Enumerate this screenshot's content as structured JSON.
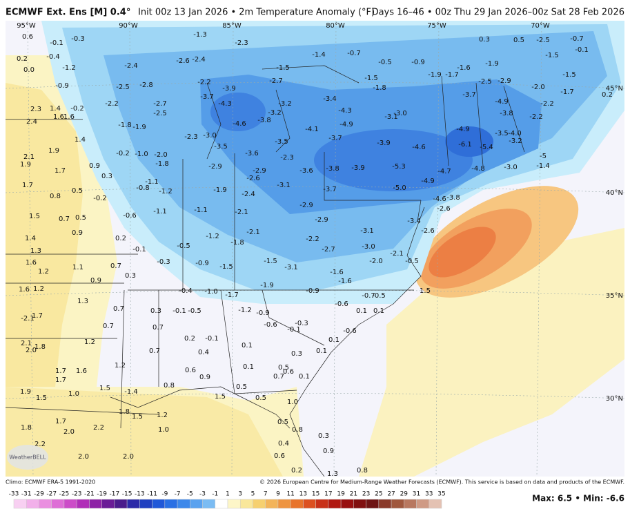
{
  "header": {
    "model": "ECMWF Ext. Ens [M] 0.4°",
    "description": "Init 00z 13 Jan 2026 • 2m Temperature Anomaly (°F)",
    "valid": "Days 16–46 • 00z Thu 29 Jan 2026–00z Sat 28 Feb 2026"
  },
  "map": {
    "lon_labels": [
      "95°W",
      "90°W",
      "85°W",
      "80°W",
      "75°W",
      "70°W"
    ],
    "lat_labels": [
      "45°N",
      "40°N",
      "35°N",
      "30°N"
    ],
    "logo": "WeatherBELL",
    "station_values": [
      "0.6",
      "-0.1",
      "-0.3",
      "-1.3",
      "-2.3",
      "-1.4",
      "-0.7",
      "-0.5",
      "-0.9",
      "0.3",
      "0.5",
      "-2.5",
      "-0.7",
      "-0.1",
      "0.2",
      "-0.4",
      "-1.2",
      "-2.4",
      "-2.6",
      "-2.4",
      "-1.5",
      "-1.5",
      "-1.9",
      "-1.7",
      "-1.6",
      "-1.9",
      "-1.5",
      "-1.5",
      "0.0",
      "-0.9",
      "-2.5",
      "-2.8",
      "-2.2",
      "-2.7",
      "-1.8",
      "-2.5",
      "-2.9",
      "-2.0",
      "-1.7",
      "0.2",
      "2.3",
      "1.4",
      "-0.2",
      "-2.2",
      "-2.7",
      "-3.7",
      "-3.9",
      "-4.3",
      "-3.2",
      "-3.4",
      "-4.3",
      "-3.7",
      "-4.9",
      "-2.2",
      "1.6",
      "1.6",
      "2.4",
      "-1.8",
      "-1.9",
      "-2.5",
      "-3.2",
      "-3.8",
      "-4.6",
      "-4.1",
      "-4.9",
      "-3.1",
      "-3.0",
      "-4.9",
      "-3.8",
      "-3.5",
      "-4.0",
      "-2.2",
      "1.4",
      "1.9",
      "-0.2",
      "-1.0",
      "-2.3",
      "-3.0",
      "-3.5",
      "-3.6",
      "-3.5",
      "-2.3",
      "-3.7",
      "-3.9",
      "-4.6",
      "-6.1",
      "-5.4",
      "-3.2",
      "-5",
      "2.1",
      "1.9",
      "1.7",
      "0.9",
      "-2.0",
      "-1.8",
      "-2.9",
      "-2.9",
      "-2.6",
      "-3.6",
      "-3.8",
      "-3.9",
      "-5.3",
      "-4.7",
      "-4.8",
      "-3.0",
      "-1.4",
      "0.3",
      "-1.1",
      "-0.8",
      "-1.2",
      "-1.9",
      "-2.4",
      "-3.1",
      "-3.7",
      "-5.0",
      "-4.9",
      "1.7",
      "0.5",
      "0.8",
      "-0.2",
      "-4.6",
      "-3.8",
      "-2.6",
      "-2.1",
      "-2.9",
      "-1.1",
      "-1.1",
      "-0.6",
      "1.5",
      "0.7",
      "0.5",
      "-2.9",
      "-3.4",
      "0.9",
      "1.4",
      "0.2",
      "-1.2",
      "-2.1",
      "-1.8",
      "-2.2",
      "-3.1",
      "-2.6",
      "-0.5",
      "-0.1",
      "-2.7",
      "-3.0",
      "1.3",
      "1.6",
      "1.2",
      "1.1",
      "0.7",
      "-0.3",
      "-0.9",
      "-1.5",
      "-1.5",
      "-3.1",
      "-2.0",
      "-2.1",
      "-0.5",
      "0.3",
      "0.9",
      "1.6",
      "1.2",
      "1.3",
      "-0.4",
      "-1.0",
      "-1.7",
      "-1.9",
      "-1.6",
      "-1.6",
      "-0.9",
      "-0.7",
      "-0.5",
      "1.5",
      "0.3",
      "-0.1",
      "-0.5",
      "-1.2",
      "-0.9",
      "-0.6",
      "0.1",
      "0.1",
      "-2.1",
      "1.7",
      "0.7",
      "0.7",
      "0.7",
      "-0.6",
      "-0.3",
      "-0.1",
      "-0.6",
      "0.1",
      "1.2",
      "0.2",
      "-0.1",
      "2.1",
      "1.8",
      "2.0",
      "0.4",
      "0.1",
      "0.1",
      "0.3",
      "0.7",
      "1.2",
      "1.7",
      "1.6",
      "1.7",
      "1.0",
      "0.6",
      "0.9",
      "0.1",
      "0.5",
      "0.6",
      "0.7",
      "0.1",
      "1.5",
      "-1.4",
      "0.8",
      "0.5",
      "1.9",
      "1.5",
      "1.5",
      "0.5",
      "1.0",
      "1.8",
      "1.7",
      "2.0",
      "2.2",
      "1.8",
      "1.5",
      "1.2",
      "1.0",
      "0.5",
      "0.8",
      "0.4",
      "0.3",
      "0.6",
      "0.9",
      "2.2",
      "2.0",
      "2.0",
      "0.2",
      "0.8",
      "1.3"
    ]
  },
  "legend": {
    "ticks": [
      -33,
      -31,
      -29,
      -27,
      -25,
      -23,
      -21,
      -19,
      -17,
      -15,
      -13,
      -11,
      -9,
      -7,
      -5,
      -3,
      -1,
      1,
      3,
      5,
      7,
      9,
      11,
      13,
      15,
      17,
      19,
      21,
      23,
      25,
      27,
      29,
      31,
      33,
      35
    ],
    "colors": [
      "#f8d0f2",
      "#f2b0ea",
      "#ea8fe0",
      "#de6ed6",
      "#cc4cc8",
      "#b02eb8",
      "#8e22a6",
      "#6a1c96",
      "#4a1c8c",
      "#2c2aa8",
      "#2040c0",
      "#2058d8",
      "#2a70e4",
      "#3d88ea",
      "#5aa2ef",
      "#7bbcf3",
      "#ffffff",
      "#fdf6c8",
      "#f9e79a",
      "#f6d070",
      "#f3b45a",
      "#ee9440",
      "#e8742c",
      "#dc5020",
      "#c83018",
      "#b01810",
      "#981010",
      "#801010",
      "#6e1414",
      "#8a3a2a",
      "#a0583e",
      "#b87860",
      "#cf9a85",
      "#e4c2b3"
    ],
    "max_min": "Max: 6.5 • Min: -6.6"
  },
  "footer": {
    "climo": "Climo: ECMWF ERA-5 1991-2020",
    "copyright": "© 2026 European Centre for Medium-Range Weather Forecasts (ECMWF). This service is based on data and products of the ECMWF."
  }
}
